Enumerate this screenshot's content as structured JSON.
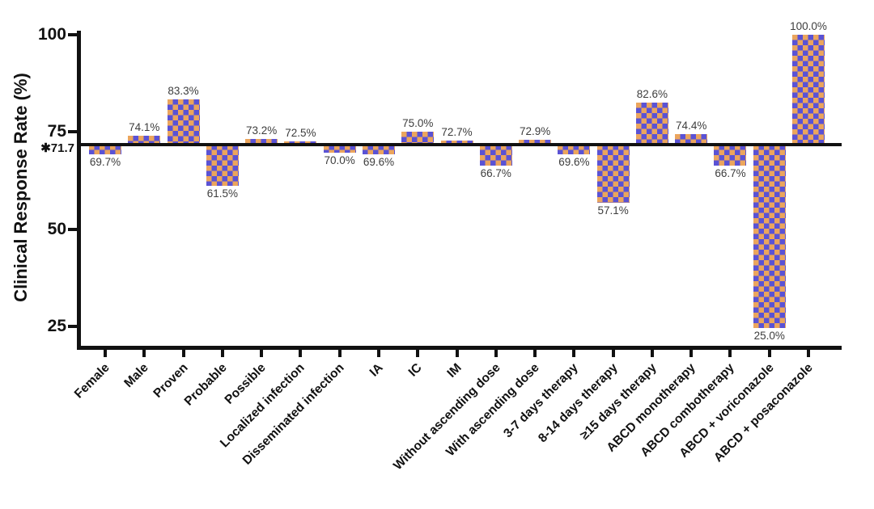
{
  "chart_data": {
    "type": "bar",
    "title": "",
    "xlabel": "",
    "ylabel": "Clinical Response Rate (%)",
    "ylim": [
      20,
      100
    ],
    "yticks": [
      25,
      50,
      75,
      100
    ],
    "grid": false,
    "legend": null,
    "baseline_value": 71.7,
    "baseline_label": "✱71.7",
    "bar_pattern": "checkerboard",
    "colors": {
      "checker_orange": "#EBA55D",
      "checker_purple": "#5A52D5",
      "axis": "#111111",
      "value_label": "#3d3d3d"
    },
    "categories": [
      "Female",
      "Male",
      "Proven",
      "Probable",
      "Possible",
      "Localized infection",
      "Disseminated infection",
      "IA",
      "IC",
      "IM",
      "Without ascending dose",
      "With ascending dose",
      "3-7 days therapy",
      "8-14 days therapy",
      "≥15 days therapy",
      "ABCD monotherapy",
      "ABCD combotherapy",
      "ABCD + voriconazole",
      "ABCD + posaconazole"
    ],
    "values": [
      69.7,
      74.1,
      83.3,
      61.5,
      73.2,
      72.5,
      70.0,
      69.6,
      75.0,
      72.7,
      66.7,
      72.9,
      69.6,
      57.1,
      82.6,
      74.4,
      66.7,
      25.0,
      100.0
    ],
    "value_labels": [
      "69.7%",
      "74.1%",
      "83.3%",
      "61.5%",
      "73.2%",
      "72.5%",
      "70.0%",
      "69.6%",
      "75.0%",
      "72.7%",
      "66.7%",
      "72.9%",
      "69.6%",
      "57.1%",
      "82.6%",
      "74.4%",
      "66.7%",
      "25.0%",
      "100.0%"
    ]
  }
}
